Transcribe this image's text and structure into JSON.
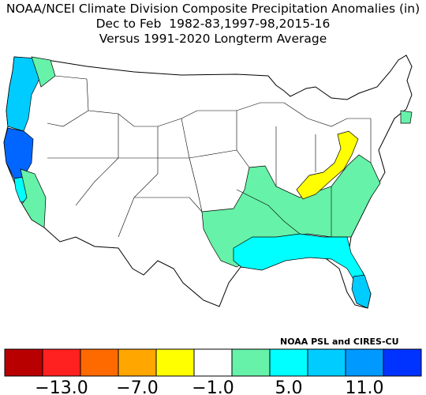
{
  "title": {
    "line1": "NOAA/NCEI Climate Division Composite Precipitation Anomalies (in)",
    "line2": "Dec to Feb  1982-83,1997-98,2015-16",
    "line3": "Versus 1991-2020 Longterm Average"
  },
  "credit": "NOAA PSL and CIRES-CU",
  "legend": {
    "colors": [
      "#b80000",
      "#ff2020",
      "#ff6a00",
      "#ffa600",
      "#ffff00",
      "#ffffff",
      "#66f2a8",
      "#00ffff",
      "#00ccff",
      "#0099ff",
      "#0033ff"
    ],
    "tick_labels": [
      "-13.0",
      "-7.0",
      "-1.0",
      "5.0",
      "11.0"
    ]
  },
  "map_regions": [
    {
      "name": "pacific-northwest-coast",
      "category": "blue",
      "color": "#00ccff"
    },
    {
      "name": "northern-california-coast",
      "category": "dark-blue",
      "color": "#0066ff"
    },
    {
      "name": "central-california",
      "category": "cyan",
      "color": "#00ffff"
    },
    {
      "name": "southern-california",
      "category": "green",
      "color": "#66f2a8"
    },
    {
      "name": "south-central-states",
      "category": "green",
      "color": "#66f2a8"
    },
    {
      "name": "gulf-coast",
      "category": "cyan",
      "color": "#00ffff"
    },
    {
      "name": "florida-south",
      "category": "blue",
      "color": "#00ccff"
    },
    {
      "name": "ohio-valley-dry",
      "category": "yellow",
      "color": "#ffff00"
    }
  ]
}
